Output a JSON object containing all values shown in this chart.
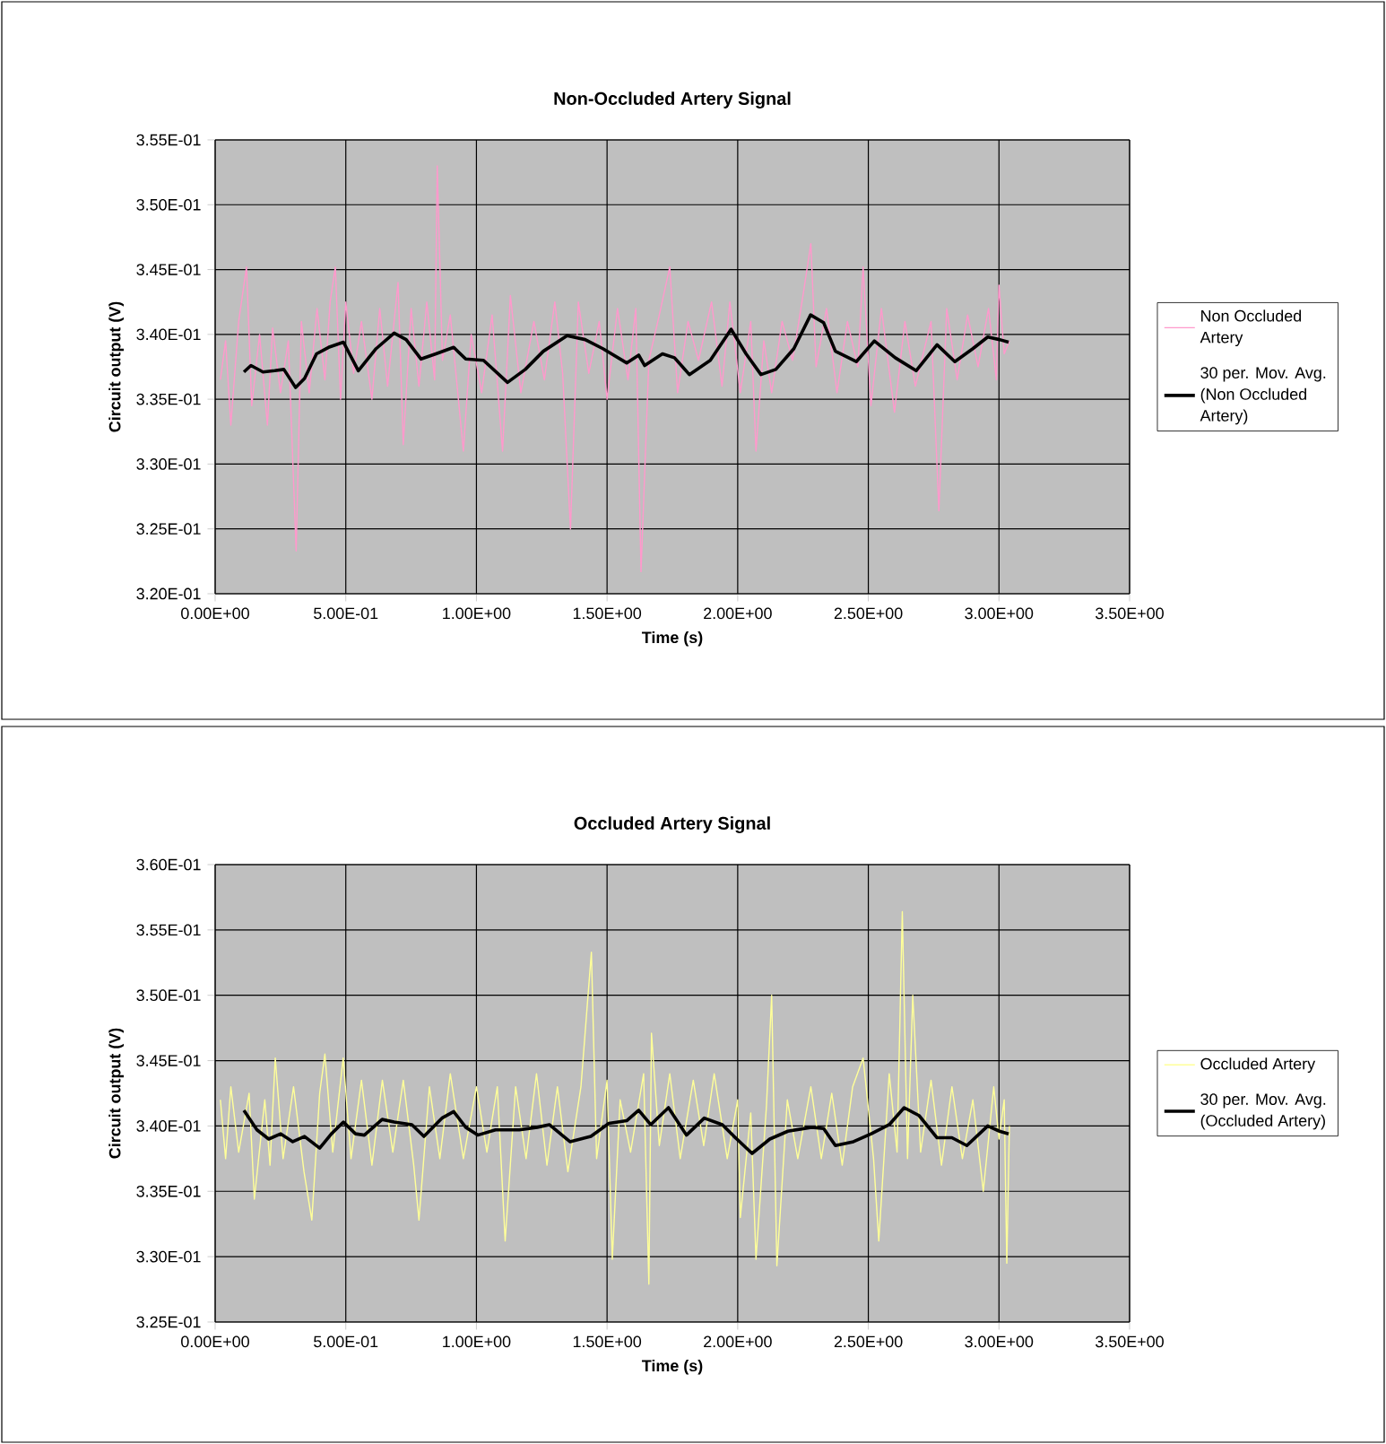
{
  "chart_data": [
    {
      "type": "line",
      "title": "Non-Occluded Artery Signal",
      "xlabel": "Time (s)",
      "ylabel": "Circuit output (V)",
      "xlim": [
        0,
        3.5
      ],
      "ylim": [
        0.32,
        0.355
      ],
      "xticks": [
        {
          "value": 0,
          "label": "0.00E+00"
        },
        {
          "value": 0.5,
          "label": "5.00E-01"
        },
        {
          "value": 1,
          "label": "1.00E+00"
        },
        {
          "value": 1.5,
          "label": "1.50E+00"
        },
        {
          "value": 2,
          "label": "2.00E+00"
        },
        {
          "value": 2.5,
          "label": "2.50E+00"
        },
        {
          "value": 3,
          "label": "3.00E+00"
        },
        {
          "value": 3.5,
          "label": "3.50E+00"
        }
      ],
      "yticks": [
        {
          "value": 0.32,
          "label": "3.20E-01"
        },
        {
          "value": 0.325,
          "label": "3.25E-01"
        },
        {
          "value": 0.33,
          "label": "3.30E-01"
        },
        {
          "value": 0.335,
          "label": "3.35E-01"
        },
        {
          "value": 0.34,
          "label": "3.40E-01"
        },
        {
          "value": 0.345,
          "label": "3.45E-01"
        },
        {
          "value": 0.35,
          "label": "3.50E-01"
        },
        {
          "value": 0.355,
          "label": "3.55E-01"
        }
      ],
      "grid": true,
      "legend": "right",
      "series": [
        {
          "name": "Non Occluded Artery",
          "color": "#ff99cc",
          "x": [
            0.02,
            0.04,
            0.06,
            0.09,
            0.12,
            0.14,
            0.17,
            0.2,
            0.22,
            0.25,
            0.28,
            0.31,
            0.33,
            0.36,
            0.39,
            0.42,
            0.44,
            0.46,
            0.48,
            0.5,
            0.53,
            0.56,
            0.6,
            0.63,
            0.66,
            0.7,
            0.72,
            0.75,
            0.78,
            0.81,
            0.84,
            0.85,
            0.87,
            0.9,
            0.95,
            0.98,
            1.02,
            1.06,
            1.1,
            1.13,
            1.17,
            1.22,
            1.26,
            1.3,
            1.33,
            1.36,
            1.39,
            1.43,
            1.47,
            1.5,
            1.54,
            1.58,
            1.61,
            1.63,
            1.66,
            1.7,
            1.74,
            1.77,
            1.81,
            1.85,
            1.9,
            1.94,
            1.97,
            2.01,
            2.05,
            2.07,
            2.1,
            2.13,
            2.17,
            2.21,
            2.25,
            2.28,
            2.3,
            2.34,
            2.38,
            2.42,
            2.46,
            2.48,
            2.51,
            2.55,
            2.6,
            2.64,
            2.68,
            2.74,
            2.77,
            2.8,
            2.84,
            2.88,
            2.92,
            2.96,
            2.99,
            3.0,
            3.02,
            3.04
          ],
          "values": [
            0.3365,
            0.3395,
            0.333,
            0.341,
            0.3452,
            0.3345,
            0.34,
            0.333,
            0.3405,
            0.3355,
            0.3395,
            0.3233,
            0.341,
            0.3355,
            0.342,
            0.3365,
            0.3425,
            0.3452,
            0.335,
            0.3425,
            0.337,
            0.341,
            0.335,
            0.342,
            0.336,
            0.344,
            0.3315,
            0.342,
            0.336,
            0.3425,
            0.3365,
            0.353,
            0.338,
            0.3415,
            0.331,
            0.34,
            0.3355,
            0.3415,
            0.331,
            0.343,
            0.3355,
            0.341,
            0.3365,
            0.3425,
            0.337,
            0.325,
            0.3425,
            0.337,
            0.341,
            0.335,
            0.342,
            0.3365,
            0.342,
            0.3217,
            0.338,
            0.3415,
            0.3452,
            0.3355,
            0.341,
            0.338,
            0.3425,
            0.336,
            0.3425,
            0.3355,
            0.341,
            0.331,
            0.3395,
            0.3355,
            0.341,
            0.338,
            0.343,
            0.347,
            0.3375,
            0.342,
            0.3355,
            0.341,
            0.3375,
            0.3452,
            0.3345,
            0.342,
            0.334,
            0.341,
            0.336,
            0.341,
            0.3264,
            0.342,
            0.3365,
            0.3415,
            0.3375,
            0.342,
            0.3365,
            0.3438,
            0.3385,
            0.3395
          ]
        },
        {
          "name": "30 per. Mov. Avg. (Non Occluded Artery)",
          "color": "#000000",
          "x": [
            0.11,
            0.137,
            0.183,
            0.228,
            0.263,
            0.308,
            0.342,
            0.388,
            0.434,
            0.491,
            0.548,
            0.616,
            0.685,
            0.731,
            0.788,
            0.845,
            0.913,
            0.959,
            1.027,
            1.119,
            1.187,
            1.256,
            1.347,
            1.416,
            1.484,
            1.575,
            1.621,
            1.644,
            1.712,
            1.758,
            1.815,
            1.895,
            1.975,
            2.032,
            2.089,
            2.146,
            2.215,
            2.279,
            2.329,
            2.374,
            2.454,
            2.523,
            2.603,
            2.683,
            2.763,
            2.831,
            2.9,
            2.957,
            3.002,
            3.037
          ],
          "values": [
            0.3371,
            0.3376,
            0.3371,
            0.3372,
            0.3373,
            0.3359,
            0.3366,
            0.3385,
            0.339,
            0.3394,
            0.3372,
            0.3389,
            0.3401,
            0.3396,
            0.3381,
            0.3385,
            0.339,
            0.3381,
            0.338,
            0.3363,
            0.3373,
            0.3387,
            0.3399,
            0.3396,
            0.3389,
            0.3378,
            0.3384,
            0.3376,
            0.3385,
            0.3382,
            0.3369,
            0.338,
            0.3404,
            0.3385,
            0.3369,
            0.3373,
            0.3389,
            0.3415,
            0.3409,
            0.3387,
            0.3379,
            0.3395,
            0.3382,
            0.3372,
            0.3392,
            0.3379,
            0.3389,
            0.3398,
            0.3396,
            0.3394
          ]
        }
      ]
    },
    {
      "type": "line",
      "title": "Occluded Artery Signal",
      "xlabel": "Time (s)",
      "ylabel": "Circuit output (V)",
      "xlim": [
        0,
        3.5
      ],
      "ylim": [
        0.325,
        0.36
      ],
      "xticks": [
        {
          "value": 0,
          "label": "0.00E+00"
        },
        {
          "value": 0.5,
          "label": "5.00E-01"
        },
        {
          "value": 1,
          "label": "1.00E+00"
        },
        {
          "value": 1.5,
          "label": "1.50E+00"
        },
        {
          "value": 2,
          "label": "2.00E+00"
        },
        {
          "value": 2.5,
          "label": "2.50E+00"
        },
        {
          "value": 3,
          "label": "3.00E+00"
        },
        {
          "value": 3.5,
          "label": "3.50E+00"
        }
      ],
      "yticks": [
        {
          "value": 0.325,
          "label": "3.25E-01"
        },
        {
          "value": 0.33,
          "label": "3.30E-01"
        },
        {
          "value": 0.335,
          "label": "3.35E-01"
        },
        {
          "value": 0.34,
          "label": "3.40E-01"
        },
        {
          "value": 0.345,
          "label": "3.45E-01"
        },
        {
          "value": 0.35,
          "label": "3.50E-01"
        },
        {
          "value": 0.355,
          "label": "3.55E-01"
        },
        {
          "value": 0.36,
          "label": "3.60E-01"
        }
      ],
      "grid": true,
      "legend": "right",
      "series": [
        {
          "name": "Occluded Artery",
          "color": "#ffff99",
          "x": [
            0.02,
            0.04,
            0.06,
            0.09,
            0.13,
            0.15,
            0.19,
            0.21,
            0.23,
            0.26,
            0.3,
            0.34,
            0.37,
            0.4,
            0.42,
            0.45,
            0.49,
            0.52,
            0.56,
            0.6,
            0.64,
            0.68,
            0.72,
            0.76,
            0.78,
            0.82,
            0.86,
            0.9,
            0.95,
            1.0,
            1.04,
            1.08,
            1.11,
            1.15,
            1.19,
            1.23,
            1.27,
            1.31,
            1.35,
            1.4,
            1.44,
            1.46,
            1.5,
            1.52,
            1.55,
            1.59,
            1.64,
            1.66,
            1.67,
            1.7,
            1.74,
            1.78,
            1.83,
            1.87,
            1.91,
            1.96,
            2.0,
            2.01,
            2.05,
            2.07,
            2.11,
            2.13,
            2.15,
            2.19,
            2.23,
            2.28,
            2.32,
            2.36,
            2.4,
            2.44,
            2.48,
            2.52,
            2.54,
            2.58,
            2.61,
            2.63,
            2.65,
            2.67,
            2.7,
            2.74,
            2.78,
            2.82,
            2.86,
            2.9,
            2.94,
            2.98,
            3.0,
            3.02,
            3.03,
            3.04
          ],
          "values": [
            0.342,
            0.3375,
            0.343,
            0.338,
            0.3425,
            0.3344,
            0.342,
            0.337,
            0.3452,
            0.3375,
            0.343,
            0.3365,
            0.3328,
            0.3425,
            0.3455,
            0.338,
            0.3452,
            0.3375,
            0.3435,
            0.337,
            0.3435,
            0.338,
            0.3435,
            0.337,
            0.3328,
            0.343,
            0.3375,
            0.344,
            0.3375,
            0.343,
            0.338,
            0.343,
            0.3312,
            0.343,
            0.3375,
            0.344,
            0.337,
            0.343,
            0.3365,
            0.343,
            0.3533,
            0.3375,
            0.3435,
            0.3298,
            0.342,
            0.338,
            0.344,
            0.3279,
            0.3471,
            0.3385,
            0.344,
            0.3375,
            0.3435,
            0.3385,
            0.344,
            0.3375,
            0.342,
            0.333,
            0.341,
            0.3298,
            0.3415,
            0.35,
            0.3293,
            0.342,
            0.3375,
            0.343,
            0.3375,
            0.3425,
            0.337,
            0.343,
            0.3452,
            0.3375,
            0.3312,
            0.344,
            0.338,
            0.3564,
            0.3375,
            0.35,
            0.338,
            0.3435,
            0.337,
            0.343,
            0.3375,
            0.342,
            0.335,
            0.343,
            0.339,
            0.342,
            0.3295,
            0.34
          ]
        },
        {
          "name": "30 per. Mov. Avg. (Occluded Artery)",
          "color": "#000000",
          "x": [
            0.11,
            0.16,
            0.205,
            0.251,
            0.297,
            0.342,
            0.4,
            0.445,
            0.491,
            0.537,
            0.571,
            0.639,
            0.685,
            0.753,
            0.799,
            0.868,
            0.913,
            0.959,
            1.005,
            1.073,
            1.164,
            1.233,
            1.279,
            1.358,
            1.438,
            1.507,
            1.575,
            1.621,
            1.667,
            1.735,
            1.804,
            1.872,
            1.941,
            1.986,
            2.055,
            2.123,
            2.192,
            2.283,
            2.329,
            2.374,
            2.443,
            2.511,
            2.58,
            2.637,
            2.694,
            2.763,
            2.82,
            2.877,
            2.957,
            3.002,
            3.037
          ],
          "values": [
            0.3412,
            0.3397,
            0.339,
            0.3394,
            0.3388,
            0.3392,
            0.3383,
            0.3394,
            0.3403,
            0.3394,
            0.3393,
            0.3405,
            0.3403,
            0.3401,
            0.3392,
            0.3406,
            0.3411,
            0.3399,
            0.3393,
            0.3397,
            0.3397,
            0.3399,
            0.3401,
            0.3388,
            0.3392,
            0.3402,
            0.3404,
            0.3412,
            0.3401,
            0.3414,
            0.3393,
            0.3406,
            0.3401,
            0.3392,
            0.3379,
            0.339,
            0.3396,
            0.3399,
            0.3398,
            0.3385,
            0.3388,
            0.3394,
            0.3401,
            0.3414,
            0.3408,
            0.3391,
            0.3391,
            0.3385,
            0.34,
            0.3396,
            0.3394
          ]
        }
      ]
    }
  ]
}
